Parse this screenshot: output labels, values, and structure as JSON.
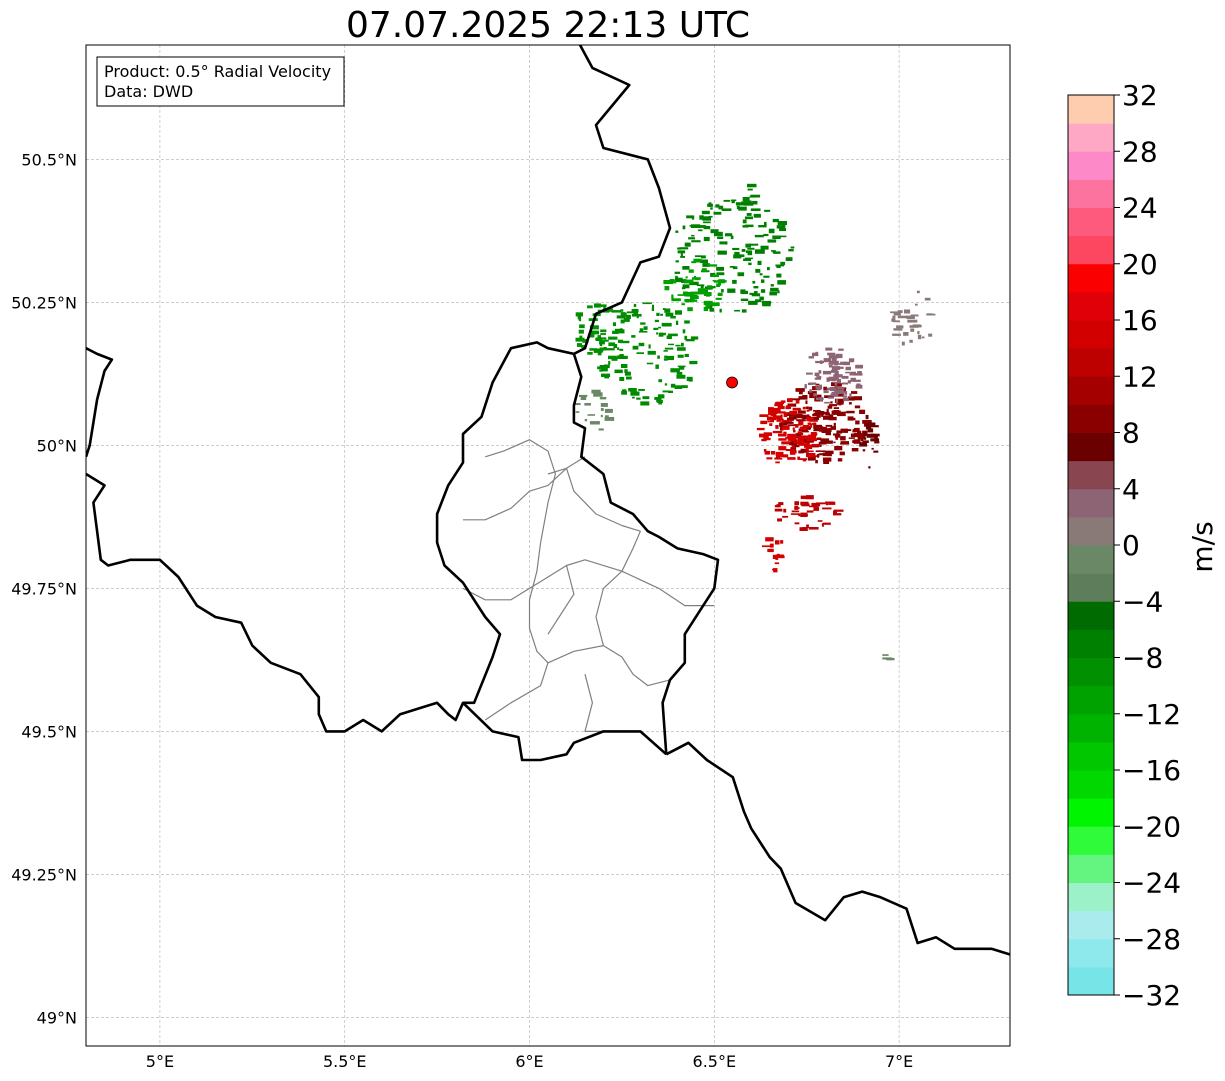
{
  "title": "07.07.2025 22:13 UTC",
  "info_box": {
    "product": "Product: 0.5° Radial Velocity",
    "data_source": "Data: DWD"
  },
  "map": {
    "lon_range": [
      4.8,
      7.3
    ],
    "lat_range": [
      48.95,
      50.7
    ],
    "lon_ticks": [
      {
        "value": 5.0,
        "label": "5°E"
      },
      {
        "value": 5.5,
        "label": "5.5°E"
      },
      {
        "value": 6.0,
        "label": "6°E"
      },
      {
        "value": 6.5,
        "label": "6.5°E"
      },
      {
        "value": 7.0,
        "label": "7°E"
      }
    ],
    "lat_ticks": [
      {
        "value": 49.0,
        "label": "49°N"
      },
      {
        "value": 49.25,
        "label": "49.25°N"
      },
      {
        "value": 49.5,
        "label": "49.5°N"
      },
      {
        "value": 49.75,
        "label": "49.75°N"
      },
      {
        "value": 50.0,
        "label": "50°N"
      },
      {
        "value": 50.25,
        "label": "50.25°N"
      },
      {
        "value": 50.5,
        "label": "50.5°N"
      }
    ],
    "gridlines": true,
    "radar_site": {
      "lon": 6.548,
      "lat": 50.11,
      "color": "#ff0000"
    },
    "borders": [
      [
        [
          6.12,
          50.72
        ],
        [
          6.17,
          50.66
        ],
        [
          6.27,
          50.63
        ],
        [
          6.18,
          50.56
        ],
        [
          6.2,
          50.52
        ],
        [
          6.32,
          50.5
        ],
        [
          6.35,
          50.45
        ],
        [
          6.38,
          50.38
        ],
        [
          6.35,
          50.33
        ],
        [
          6.3,
          50.32
        ],
        [
          6.25,
          50.25
        ],
        [
          6.18,
          50.23
        ],
        [
          6.15,
          50.17
        ],
        [
          6.12,
          50.16
        ],
        [
          6.14,
          50.12
        ],
        [
          6.12,
          50.07
        ],
        [
          6.12,
          50.04
        ],
        [
          6.15,
          50.03
        ],
        [
          6.14,
          49.98
        ],
        [
          6.2,
          49.95
        ],
        [
          6.22,
          49.9
        ],
        [
          6.28,
          49.88
        ],
        [
          6.32,
          49.85
        ],
        [
          6.35,
          49.84
        ],
        [
          6.4,
          49.82
        ],
        [
          6.47,
          49.81
        ],
        [
          6.51,
          49.8
        ],
        [
          6.5,
          49.75
        ],
        [
          6.47,
          49.72
        ],
        [
          6.42,
          49.67
        ],
        [
          6.42,
          49.62
        ],
        [
          6.38,
          49.59
        ],
        [
          6.36,
          49.55
        ],
        [
          6.37,
          49.46
        ]
      ],
      [
        [
          6.12,
          50.16
        ],
        [
          6.05,
          50.17
        ],
        [
          6.02,
          50.18
        ],
        [
          5.95,
          50.17
        ],
        [
          5.9,
          50.11
        ],
        [
          5.87,
          50.05
        ],
        [
          5.82,
          50.02
        ],
        [
          5.82,
          49.97
        ],
        [
          5.78,
          49.93
        ],
        [
          5.75,
          49.88
        ],
        [
          5.75,
          49.83
        ],
        [
          5.77,
          49.79
        ],
        [
          5.82,
          49.76
        ],
        [
          5.88,
          49.7
        ],
        [
          5.92,
          49.67
        ],
        [
          5.9,
          49.63
        ],
        [
          5.85,
          49.55
        ],
        [
          5.82,
          49.55
        ],
        [
          5.8,
          49.52
        ],
        [
          5.78,
          49.53
        ],
        [
          5.75,
          49.55
        ],
        [
          5.7,
          49.54
        ],
        [
          5.65,
          49.53
        ],
        [
          5.6,
          49.5
        ],
        [
          5.55,
          49.52
        ],
        [
          5.5,
          49.5
        ],
        [
          5.45,
          49.5
        ],
        [
          5.43,
          49.53
        ],
        [
          5.43,
          49.56
        ],
        [
          5.38,
          49.6
        ],
        [
          5.3,
          49.62
        ],
        [
          5.25,
          49.65
        ],
        [
          5.22,
          49.69
        ],
        [
          5.15,
          49.7
        ],
        [
          5.1,
          49.72
        ],
        [
          5.05,
          49.77
        ],
        [
          5.0,
          49.8
        ],
        [
          4.92,
          49.8
        ],
        [
          4.86,
          49.79
        ],
        [
          4.84,
          49.8
        ],
        [
          4.83,
          49.85
        ],
        [
          4.82,
          49.9
        ],
        [
          4.85,
          49.93
        ],
        [
          4.8,
          49.95
        ]
      ],
      [
        [
          6.37,
          49.46
        ],
        [
          6.3,
          49.5
        ],
        [
          6.2,
          49.5
        ],
        [
          6.12,
          49.48
        ],
        [
          6.1,
          49.46
        ],
        [
          6.03,
          49.45
        ],
        [
          5.98,
          49.45
        ],
        [
          5.97,
          49.49
        ],
        [
          5.9,
          49.5
        ],
        [
          5.82,
          49.55
        ]
      ],
      [
        [
          6.37,
          49.46
        ],
        [
          6.43,
          49.48
        ],
        [
          6.48,
          49.45
        ],
        [
          6.55,
          49.42
        ],
        [
          6.58,
          49.36
        ],
        [
          6.6,
          49.33
        ],
        [
          6.65,
          49.28
        ],
        [
          6.68,
          49.26
        ],
        [
          6.72,
          49.2
        ],
        [
          6.8,
          49.17
        ],
        [
          6.85,
          49.21
        ],
        [
          6.9,
          49.22
        ],
        [
          6.95,
          49.21
        ],
        [
          7.02,
          49.19
        ],
        [
          7.05,
          49.13
        ],
        [
          7.1,
          49.14
        ],
        [
          7.15,
          49.12
        ],
        [
          7.2,
          49.12
        ],
        [
          7.25,
          49.12
        ],
        [
          7.3,
          49.11
        ]
      ],
      [
        [
          4.8,
          50.17
        ],
        [
          4.83,
          50.16
        ],
        [
          4.87,
          50.15
        ],
        [
          4.85,
          50.13
        ],
        [
          4.83,
          50.08
        ],
        [
          4.82,
          50.04
        ],
        [
          4.81,
          50.0
        ],
        [
          4.8,
          49.98
        ]
      ]
    ],
    "regions": [
      [
        [
          5.82,
          49.87
        ],
        [
          5.88,
          49.87
        ],
        [
          5.95,
          49.89
        ],
        [
          6.0,
          49.92
        ],
        [
          6.05,
          49.93
        ],
        [
          6.1,
          49.96
        ],
        [
          6.15,
          49.98
        ]
      ],
      [
        [
          5.88,
          49.98
        ],
        [
          5.93,
          49.99
        ],
        [
          6.0,
          50.01
        ],
        [
          6.05,
          49.99
        ],
        [
          6.07,
          49.95
        ],
        [
          6.05,
          49.9
        ],
        [
          6.03,
          49.83
        ]
      ],
      [
        [
          6.05,
          49.95
        ],
        [
          6.1,
          49.96
        ],
        [
          6.12,
          49.92
        ],
        [
          6.18,
          49.88
        ],
        [
          6.25,
          49.86
        ],
        [
          6.3,
          49.85
        ]
      ],
      [
        [
          5.82,
          49.75
        ],
        [
          5.88,
          49.73
        ],
        [
          5.95,
          49.73
        ],
        [
          6.0,
          49.75
        ],
        [
          6.05,
          49.77
        ],
        [
          6.1,
          49.79
        ],
        [
          6.15,
          49.8
        ],
        [
          6.25,
          49.78
        ],
        [
          6.35,
          49.75
        ],
        [
          6.42,
          49.72
        ],
        [
          6.5,
          49.72
        ]
      ],
      [
        [
          6.03,
          49.83
        ],
        [
          6.02,
          49.78
        ],
        [
          6.0,
          49.73
        ],
        [
          6.0,
          49.68
        ],
        [
          6.02,
          49.64
        ],
        [
          6.05,
          49.62
        ],
        [
          6.03,
          49.58
        ],
        [
          5.95,
          49.55
        ],
        [
          5.88,
          49.52
        ]
      ],
      [
        [
          6.05,
          49.62
        ],
        [
          6.12,
          49.64
        ],
        [
          6.2,
          49.65
        ],
        [
          6.25,
          49.63
        ],
        [
          6.28,
          49.6
        ],
        [
          6.32,
          49.58
        ],
        [
          6.38,
          49.59
        ]
      ],
      [
        [
          6.2,
          49.65
        ],
        [
          6.18,
          49.7
        ],
        [
          6.2,
          49.75
        ],
        [
          6.25,
          49.78
        ],
        [
          6.28,
          49.82
        ],
        [
          6.3,
          49.85
        ]
      ],
      [
        [
          6.1,
          49.79
        ],
        [
          6.12,
          49.74
        ],
        [
          6.08,
          49.7
        ],
        [
          6.05,
          49.67
        ]
      ],
      [
        [
          6.15,
          49.6
        ],
        [
          6.17,
          49.55
        ],
        [
          6.15,
          49.5
        ],
        [
          6.2,
          49.5
        ]
      ]
    ]
  },
  "colorbar": {
    "label": "m/s",
    "min": -32,
    "max": 32,
    "ticks": [
      -32,
      -28,
      -24,
      -20,
      -16,
      -12,
      -8,
      -4,
      0,
      4,
      8,
      12,
      16,
      20,
      24,
      28,
      32
    ],
    "tick_labels": [
      "−32",
      "−28",
      "−24",
      "−20",
      "−16",
      "−12",
      "−8",
      "−4",
      "0",
      "4",
      "8",
      "12",
      "16",
      "20",
      "24",
      "28",
      "32"
    ],
    "colors": [
      "#77e4e8",
      "#8ee9ec",
      "#aaecee",
      "#9cf1c8",
      "#63f57f",
      "#2ffb3b",
      "#00f500",
      "#00d800",
      "#00c700",
      "#00b300",
      "#00a200",
      "#009000",
      "#008000",
      "#006b00",
      "#5e7d5a",
      "#6b8866",
      "#897a78",
      "#8c6474",
      "#8a4650",
      "#6b0000",
      "#8a0000",
      "#a50000",
      "#bd0000",
      "#d30000",
      "#e00007",
      "#fa0000",
      "#fd4760",
      "#fd5a7e",
      "#fd73a0",
      "#fd89c8",
      "#fea8c6",
      "#fecdb0"
    ]
  },
  "velocity_echoes": [
    {
      "lon": 6.55,
      "lat": 50.33,
      "rx": 0.17,
      "ry": 0.1,
      "color": "#008000",
      "n": 160,
      "seed": 11
    },
    {
      "lon": 6.32,
      "lat": 50.16,
      "rx": 0.14,
      "ry": 0.09,
      "color": "#008a00",
      "n": 120,
      "seed": 21
    },
    {
      "lon": 6.45,
      "lat": 50.28,
      "rx": 0.08,
      "ry": 0.05,
      "color": "#00a000",
      "n": 50,
      "seed": 31
    },
    {
      "lon": 6.2,
      "lat": 50.2,
      "rx": 0.08,
      "ry": 0.05,
      "color": "#009000",
      "n": 45,
      "seed": 41
    },
    {
      "lon": 6.8,
      "lat": 50.04,
      "rx": 0.12,
      "ry": 0.07,
      "color": "#8a0000",
      "n": 170,
      "seed": 51
    },
    {
      "lon": 6.7,
      "lat": 50.02,
      "rx": 0.08,
      "ry": 0.06,
      "color": "#d30000",
      "n": 110,
      "seed": 61
    },
    {
      "lon": 6.82,
      "lat": 50.12,
      "rx": 0.08,
      "ry": 0.05,
      "color": "#8c6474",
      "n": 80,
      "seed": 71
    },
    {
      "lon": 6.75,
      "lat": 49.88,
      "rx": 0.09,
      "ry": 0.03,
      "color": "#bd0000",
      "n": 40,
      "seed": 81
    },
    {
      "lon": 6.66,
      "lat": 49.82,
      "rx": 0.03,
      "ry": 0.04,
      "color": "#d30000",
      "n": 14,
      "seed": 91
    },
    {
      "lon": 7.04,
      "lat": 50.22,
      "rx": 0.06,
      "ry": 0.05,
      "color": "#897a78",
      "n": 30,
      "seed": 101
    },
    {
      "lon": 6.6,
      "lat": 50.43,
      "rx": 0.015,
      "ry": 0.03,
      "color": "#008000",
      "n": 10,
      "seed": 111
    },
    {
      "lon": 6.97,
      "lat": 49.63,
      "rx": 0.012,
      "ry": 0.005,
      "color": "#6b8866",
      "n": 4,
      "seed": 121
    },
    {
      "lon": 6.17,
      "lat": 50.06,
      "rx": 0.05,
      "ry": 0.04,
      "color": "#6b8866",
      "n": 20,
      "seed": 131
    },
    {
      "lon": 6.92,
      "lat": 50.01,
      "rx": 0.02,
      "ry": 0.05,
      "color": "#6b0000",
      "n": 20,
      "seed": 141
    }
  ]
}
